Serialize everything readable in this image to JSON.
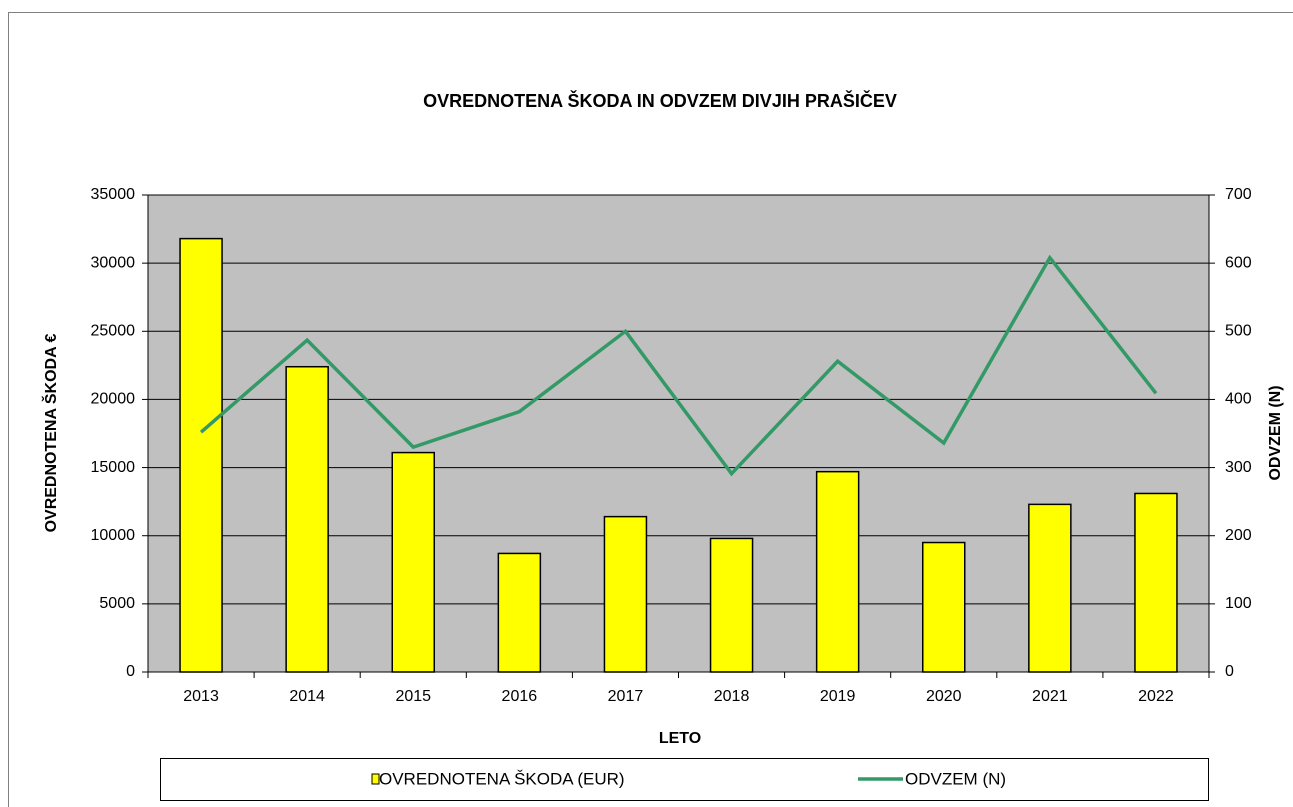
{
  "chart_data": {
    "type": "bar-line",
    "title": "OVREDNOTENA ŠKODA IN ODVZEM DIVJIH PRAŠIČEV",
    "x_label": "LETO",
    "y_label": "OVREDNOTENA ŠKODA €",
    "y2_label": "ODVZEM (N)",
    "categories": [
      "2013",
      "2014",
      "2015",
      "2016",
      "2017",
      "2018",
      "2019",
      "2020",
      "2021",
      "2022"
    ],
    "series": [
      {
        "name": "OVREDNOTENA ŠKODA (EUR)",
        "type": "bar",
        "color": "#ffff00",
        "values": [
          31800,
          22400,
          16100,
          8700,
          11400,
          9800,
          14700,
          9500,
          12300,
          13100
        ]
      },
      {
        "name": "ODVZEM (N)",
        "type": "line",
        "axis": "y2",
        "color": "#339966",
        "values": [
          352,
          487,
          330,
          382,
          500,
          291,
          456,
          336,
          608,
          409
        ]
      }
    ],
    "ylim": [
      0,
      35000
    ],
    "yticks": [
      0,
      5000,
      10000,
      15000,
      20000,
      25000,
      30000,
      35000
    ],
    "y2lim": [
      0,
      700
    ],
    "y2ticks": [
      0,
      100,
      200,
      300,
      400,
      500,
      600,
      700
    ],
    "grid": true,
    "legend": "bottom"
  }
}
